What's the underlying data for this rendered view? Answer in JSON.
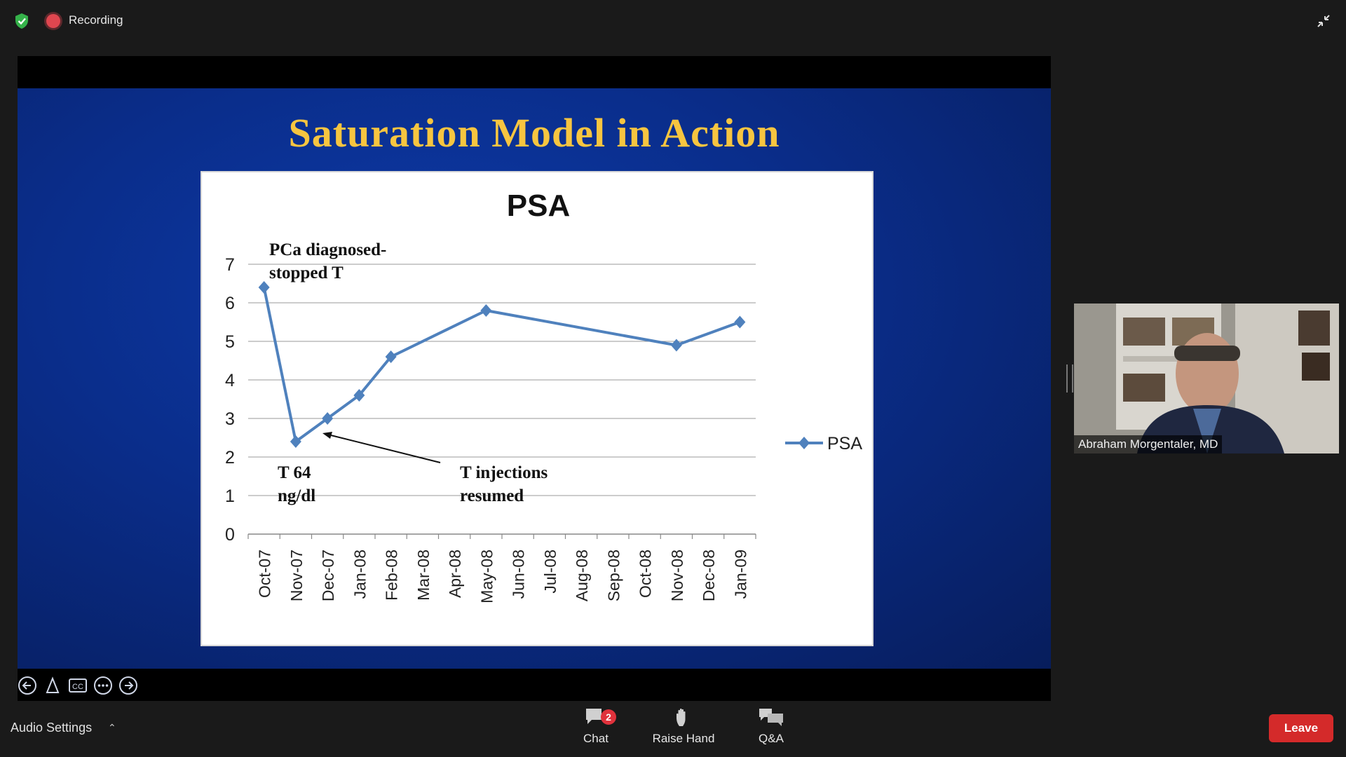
{
  "topbar": {
    "recording_label": "Recording",
    "shield_icon": "shield-check-icon",
    "collapse_icon": "collapse-arrows-icon",
    "shield_color": "#35b24a",
    "recording_color": "#e0464f"
  },
  "slide": {
    "title": "Saturation Model in Action",
    "title_color": "#f7c540",
    "controls": [
      "arrow-left-icon",
      "pointer-icon",
      "cc-icon",
      "more-icon",
      "arrow-right-icon"
    ]
  },
  "chart_data": {
    "type": "line",
    "title": "PSA",
    "categories": [
      "Oct-07",
      "Nov-07",
      "Dec-07",
      "Jan-08",
      "Feb-08",
      "Mar-08",
      "Apr-08",
      "May-08",
      "Jun-08",
      "Jul-08",
      "Aug-08",
      "Sep-08",
      "Oct-08",
      "Nov-08",
      "Dec-08",
      "Jan-09"
    ],
    "series": [
      {
        "name": "PSA",
        "color": "#4f81bd",
        "values": [
          6.4,
          2.4,
          3.0,
          3.6,
          4.6,
          null,
          null,
          5.8,
          null,
          null,
          null,
          null,
          null,
          4.9,
          null,
          5.5
        ]
      }
    ],
    "ylim": [
      0,
      7
    ],
    "yticks": [
      "0",
      "1",
      "2",
      "3",
      "4",
      "5",
      "6",
      "7"
    ],
    "grid": true,
    "legend_position": "right",
    "annotations": [
      {
        "text_lines": [
          "PCa diagnosed-",
          "stopped T"
        ]
      },
      {
        "text_lines": [
          "T 64",
          "ng/dl"
        ]
      },
      {
        "text_lines": [
          "T injections",
          "resumed"
        ]
      }
    ]
  },
  "participant": {
    "name": "Abraham Morgentaler, MD"
  },
  "bottombar": {
    "audio_label": "Audio Settings",
    "chat_label": "Chat",
    "chat_badge": "2",
    "raise_hand_label": "Raise Hand",
    "qa_label": "Q&A",
    "leave_label": "Leave",
    "leave_color": "#d42a2a"
  }
}
